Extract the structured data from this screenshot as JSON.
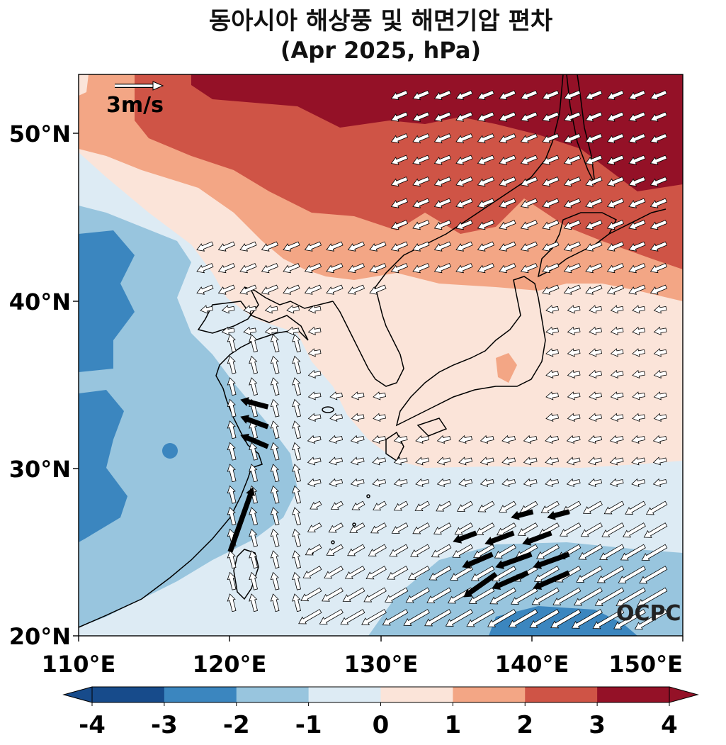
{
  "title": "동아시아 해상풍 및 해면기압 편차",
  "subtitle": "(Apr 2025, hPa)",
  "map": {
    "x_ticks": [
      "110°E",
      "120°E",
      "130°E",
      "140°E",
      "150°E"
    ],
    "y_ticks": [
      "50°N",
      "40°N",
      "30°N",
      "20°N"
    ],
    "lon_range": [
      110,
      150
    ],
    "lat_range": [
      20,
      53.5
    ],
    "reference_vector_label": "3m/s",
    "reference_vector_speed_ms": 3,
    "watermark": "OCPC"
  },
  "colorbar": {
    "ticks": [
      "-4",
      "-3",
      "-2",
      "-1",
      "0",
      "1",
      "2",
      "3",
      "4"
    ],
    "colors": [
      "#174b8b",
      "#3b86bf",
      "#98c5de",
      "#ddebf4",
      "#fbe4d9",
      "#f3a685",
      "#cf5446",
      "#941127"
    ]
  },
  "legend_colors": {
    "strong_wind_arrows": "#000000",
    "wind_arrows": "#ffffff"
  }
}
